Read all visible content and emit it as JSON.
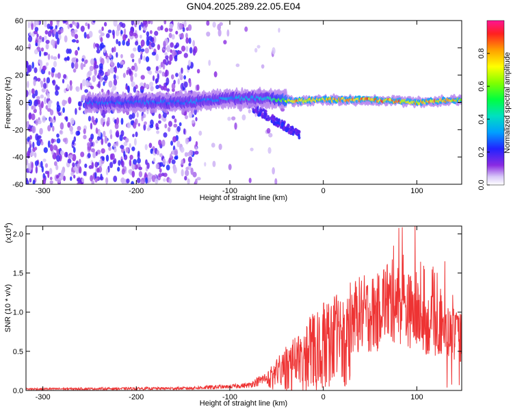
{
  "title": "GN04.2025.289.22.05.E04",
  "chart_data": [
    {
      "type": "heatmap",
      "name": "spectrogram",
      "xlabel": "Height of straight line (km)",
      "ylabel": "Frequency (Hz)",
      "xlim": [
        -318,
        148
      ],
      "ylim": [
        -60,
        60
      ],
      "xticks": [
        -300,
        -200,
        -100,
        0,
        100
      ],
      "yticks": [
        -60,
        -40,
        -20,
        0,
        20,
        40,
        60
      ],
      "colorbar": {
        "label": "Normalized spectral amplitude",
        "range": [
          0,
          1
        ],
        "ticks": [
          0.0,
          0.2,
          0.4,
          0.6,
          0.8
        ],
        "tick_labels": [
          "0.0",
          "0.2",
          "0.4",
          "0.6",
          "0.8"
        ]
      },
      "ridge": {
        "description_points": [
          {
            "x": -250,
            "freq": 0,
            "amp": 0.3
          },
          {
            "x": -150,
            "freq": 0,
            "amp": 0.3
          },
          {
            "x": -100,
            "freq": 3,
            "amp": 0.35
          },
          {
            "x": -60,
            "freq": 3,
            "amp": 0.4
          },
          {
            "x": -30,
            "freq": 1,
            "amp": 0.85
          },
          {
            "x": 0,
            "freq": 2,
            "amp": 0.8
          },
          {
            "x": 50,
            "freq": 2,
            "amp": 0.9
          },
          {
            "x": 100,
            "freq": 0,
            "amp": 0.85
          },
          {
            "x": 148,
            "freq": 2,
            "amp": 0.8
          }
        ]
      }
    },
    {
      "type": "line",
      "name": "snr",
      "xlabel": "Height of straight line (km)",
      "ylabel": "SNR (10 * v/v)",
      "y_multiplier": "(x10^4)",
      "y_multiplier_base": "(x10",
      "y_multiplier_exp": "4",
      "y_multiplier_close": ")",
      "xlim": [
        -318,
        148
      ],
      "ylim": [
        0,
        2.1
      ],
      "xticks": [
        -300,
        -200,
        -100,
        0,
        100
      ],
      "yticks": [
        0.0,
        0.5,
        1.0,
        1.5,
        2.0
      ],
      "ytick_labels": [
        "0.0",
        "0.5",
        "1.0",
        "1.5",
        "2.0"
      ],
      "color": "#ee3333",
      "envelope": [
        {
          "x": -318,
          "y": 0.02
        },
        {
          "x": -150,
          "y": 0.03
        },
        {
          "x": -110,
          "y": 0.05
        },
        {
          "x": -80,
          "y": 0.08
        },
        {
          "x": -60,
          "y": 0.2
        },
        {
          "x": -40,
          "y": 0.45
        },
        {
          "x": -20,
          "y": 0.7
        },
        {
          "x": 0,
          "y": 0.9
        },
        {
          "x": 20,
          "y": 1.05
        },
        {
          "x": 40,
          "y": 1.18
        },
        {
          "x": 60,
          "y": 1.2
        },
        {
          "x": 75,
          "y": 1.2
        },
        {
          "x": 90,
          "y": 1.1
        },
        {
          "x": 110,
          "y": 0.9
        },
        {
          "x": 130,
          "y": 0.8
        },
        {
          "x": 148,
          "y": 0.7
        }
      ],
      "peaks": [
        {
          "x": 75,
          "y": 1.85
        },
        {
          "x": 98,
          "y": 2.1
        },
        {
          "x": 108,
          "y": 1.55
        },
        {
          "x": 130,
          "y": 1.65
        }
      ]
    }
  ]
}
